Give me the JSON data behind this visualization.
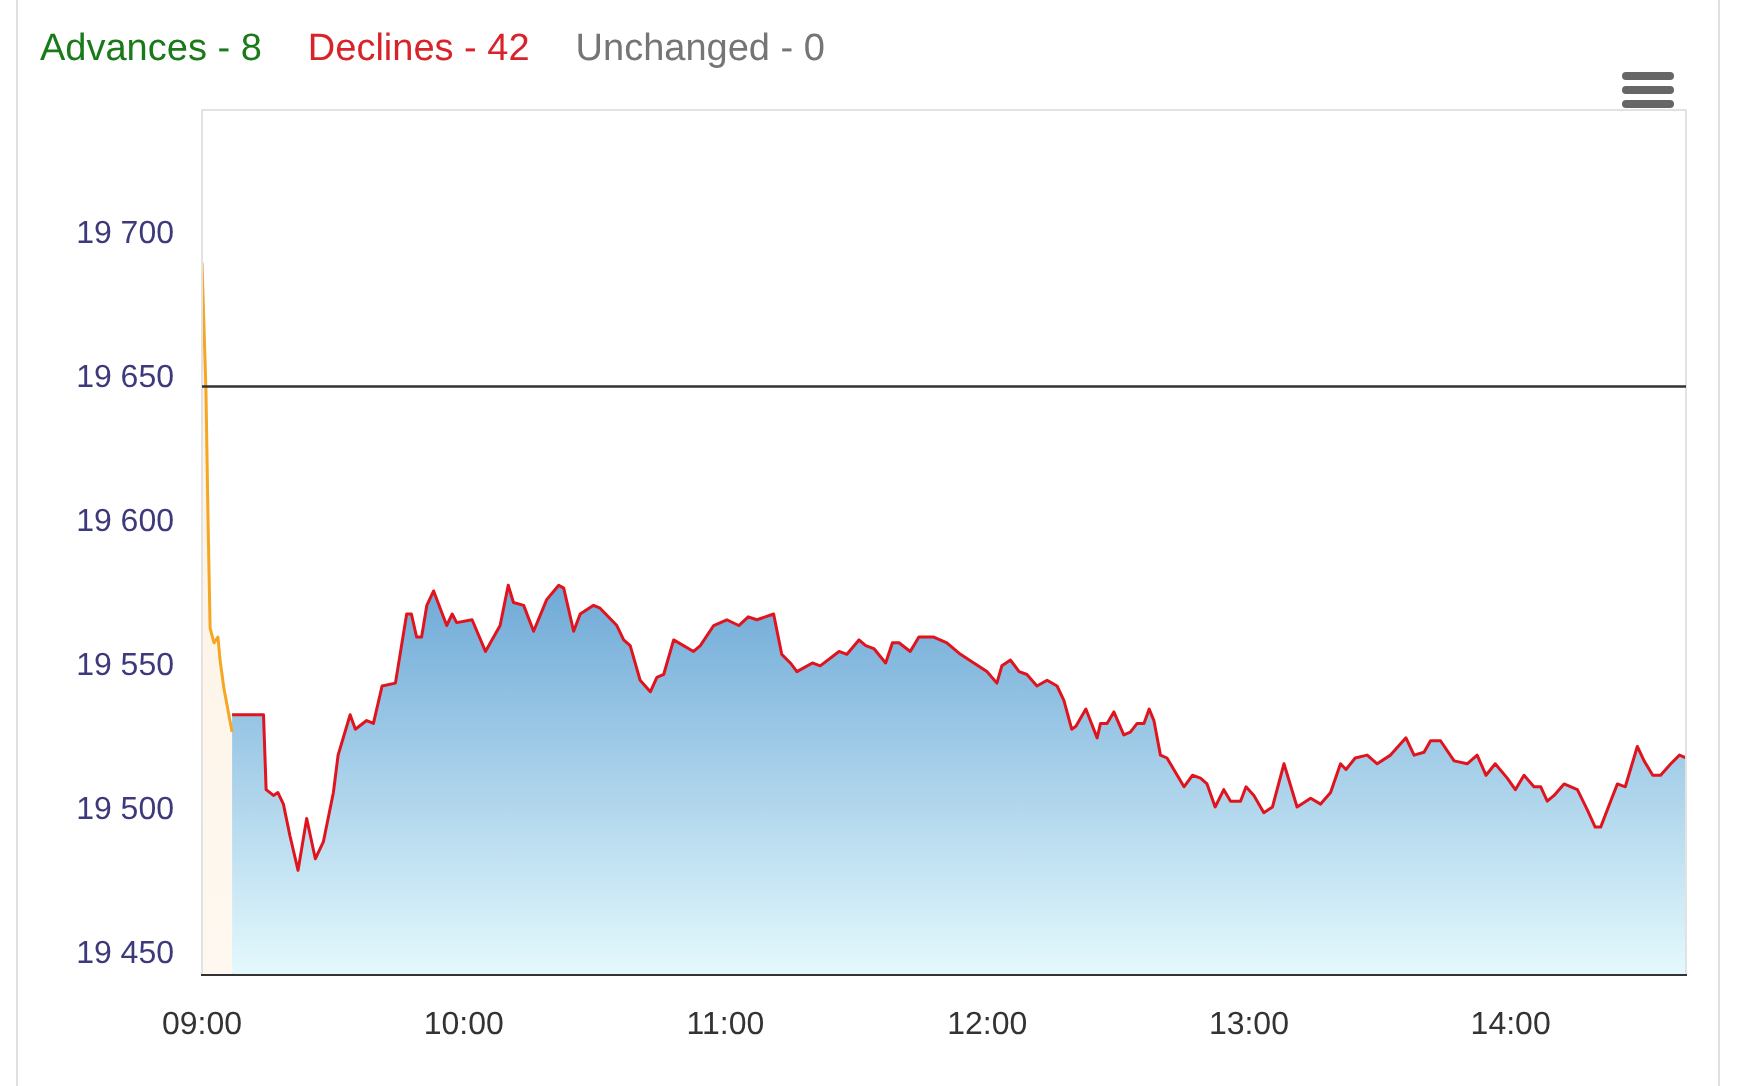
{
  "chart_data": {
    "type": "area",
    "annotations": [
      "Advances - 8",
      "Declines - 42",
      "Unchanged - 0"
    ],
    "xlim": [
      9,
      14.67
    ],
    "xticks": [
      {
        "value": 9,
        "label": "09:00"
      },
      {
        "value": 10,
        "label": "10:00"
      },
      {
        "value": 11,
        "label": "11:00"
      },
      {
        "value": 12,
        "label": "12:00"
      },
      {
        "value": 13,
        "label": "13:00"
      },
      {
        "value": 14,
        "label": "14:00"
      }
    ],
    "ylim": [
      19443,
      19743
    ],
    "yticks": [
      {
        "value": 19450,
        "label": "19 450"
      },
      {
        "value": 19500,
        "label": "19 500"
      },
      {
        "value": 19550,
        "label": "19 550"
      },
      {
        "value": 19600,
        "label": "19 600"
      },
      {
        "value": 19650,
        "label": "19 650"
      },
      {
        "value": 19700,
        "label": "19 700"
      }
    ],
    "grid": false,
    "legend": false,
    "ref_lines": [
      {
        "axis": "y",
        "value": 19647,
        "color": "#333333"
      }
    ],
    "series": [
      {
        "color": "#f5a623",
        "x": [
          9,
          9.015,
          9.023,
          9.031,
          9.046,
          9.061,
          9.069,
          9.084,
          9.115
        ],
        "values": [
          19690,
          19646,
          19601,
          19563,
          19558,
          19560,
          19552,
          19542,
          19527
        ]
      },
      {
        "color": "#e0141e",
        "x": [
          9.115,
          9.235,
          9.245,
          9.273,
          9.29,
          9.311,
          9.336,
          9.367,
          9.4,
          9.433,
          9.464,
          9.502,
          9.52,
          9.566,
          9.586,
          9.629,
          9.655,
          9.688,
          9.739,
          9.782,
          9.8,
          9.82,
          9.839,
          9.859,
          9.885,
          9.935,
          9.956,
          9.973,
          10.032,
          10.083,
          10.139,
          10.17,
          10.19,
          10.229,
          10.267,
          10.317,
          10.363,
          10.382,
          10.42,
          10.445,
          10.496,
          10.521,
          10.585,
          10.611,
          10.636,
          10.674,
          10.713,
          10.738,
          10.764,
          10.802,
          10.878,
          10.904,
          10.955,
          11.005,
          11.051,
          11.087,
          11.12,
          11.184,
          11.215,
          11.248,
          11.273,
          11.332,
          11.362,
          11.434,
          11.464,
          11.51,
          11.536,
          11.567,
          11.612,
          11.638,
          11.663,
          11.706,
          11.739,
          11.796,
          11.846,
          11.898,
          11.949,
          11.999,
          12.037,
          12.056,
          12.089,
          12.122,
          12.152,
          12.19,
          12.229,
          12.267,
          12.293,
          12.323,
          12.339,
          12.377,
          12.42,
          12.433,
          12.458,
          12.484,
          12.522,
          12.547,
          12.573,
          12.599,
          12.619,
          12.637,
          12.662,
          12.687,
          12.752,
          12.784,
          12.815,
          12.84,
          12.871,
          12.904,
          12.93,
          12.968,
          12.989,
          13.019,
          13.057,
          13.09,
          13.134,
          13.184,
          13.236,
          13.274,
          13.312,
          13.35,
          13.371,
          13.406,
          13.452,
          13.49,
          13.541,
          13.6,
          13.631,
          13.669,
          13.694,
          13.732,
          13.784,
          13.834,
          13.872,
          13.906,
          13.941,
          13.987,
          14.018,
          14.051,
          14.089,
          14.115,
          14.14,
          14.166,
          14.204,
          14.255,
          14.293,
          14.323,
          14.344,
          14.382,
          14.408,
          14.438,
          14.484,
          14.51,
          14.543,
          14.573,
          14.612,
          14.645,
          14.67
        ],
        "values": [
          19533,
          19533,
          19507,
          19505,
          19506,
          19502,
          19491,
          19479,
          19497,
          19483,
          19489,
          19506,
          19519,
          19533,
          19528,
          19531,
          19530,
          19543,
          19544,
          19568,
          19568,
          19560,
          19560,
          19571,
          19576,
          19564,
          19568,
          19565,
          19566,
          19555,
          19564,
          19578,
          19572,
          19571,
          19562,
          19573,
          19578,
          19577,
          19562,
          19568,
          19571,
          19570,
          19564,
          19559,
          19557,
          19545,
          19541,
          19546,
          19547,
          19559,
          19555,
          19557,
          19564,
          19566,
          19564,
          19567,
          19566,
          19568,
          19554,
          19551,
          19548,
          19551,
          19550,
          19555,
          19554,
          19559,
          19557,
          19556,
          19551,
          19558,
          19558,
          19555,
          19560,
          19560,
          19558,
          19554,
          19551,
          19548,
          19544,
          19550,
          19552,
          19548,
          19547,
          19543,
          19545,
          19543,
          19538,
          19528,
          19529,
          19535,
          19525,
          19530,
          19530,
          19534,
          19526,
          19527,
          19530,
          19530,
          19535,
          19531,
          19519,
          19518,
          19508,
          19512,
          19511,
          19509,
          19501,
          19507,
          19503,
          19503,
          19508,
          19505,
          19499,
          19501,
          19516,
          19501,
          19504,
          19502,
          19506,
          19516,
          19514,
          19518,
          19519,
          19516,
          19519,
          19525,
          19519,
          19520,
          19524,
          19524,
          19517,
          19516,
          19519,
          19512,
          19516,
          19511,
          19507,
          19512,
          19508,
          19508,
          19503,
          19505,
          19509,
          19507,
          19500,
          19494,
          19494,
          19503,
          19509,
          19508,
          19522,
          19517,
          19512,
          19512,
          19516,
          19519,
          19518
        ]
      }
    ]
  }
}
